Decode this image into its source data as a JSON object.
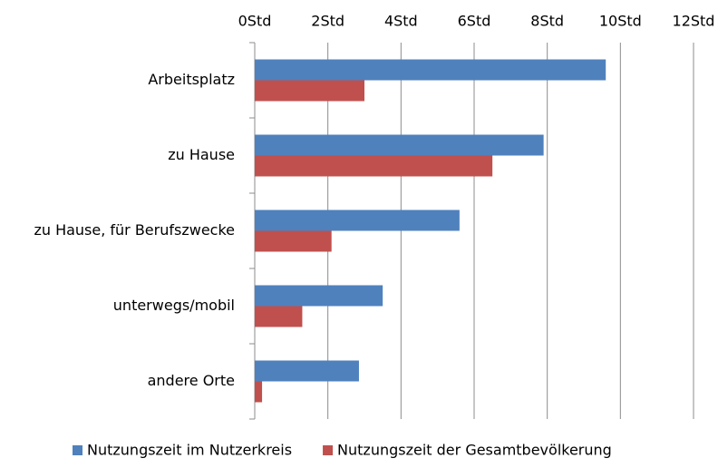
{
  "chart_data": {
    "type": "barh",
    "categories": [
      "Arbeitsplatz",
      "zu Hause",
      "zu Hause, für Berufszwecke",
      "unterwegs/mobil",
      "andere Orte"
    ],
    "series": [
      {
        "name": "Nutzungszeit im Nutzerkreis",
        "color": "#4f81bd",
        "values": [
          9.6,
          7.9,
          5.6,
          3.5,
          2.85
        ]
      },
      {
        "name": "Nutzungszeit der Gesamtbevölkerung",
        "color": "#c0504d",
        "values": [
          3.0,
          6.5,
          2.1,
          1.3,
          0.2
        ]
      }
    ],
    "xlim": [
      0,
      12
    ],
    "xticks": [
      {
        "value": 0,
        "label": "0Std"
      },
      {
        "value": 2,
        "label": "2Std"
      },
      {
        "value": 4,
        "label": "4Std"
      },
      {
        "value": 6,
        "label": "6Std"
      },
      {
        "value": 8,
        "label": "8Std"
      },
      {
        "value": 10,
        "label": "10Std"
      },
      {
        "value": 12,
        "label": "12Std"
      }
    ],
    "grid": true,
    "legend": "bottom"
  }
}
